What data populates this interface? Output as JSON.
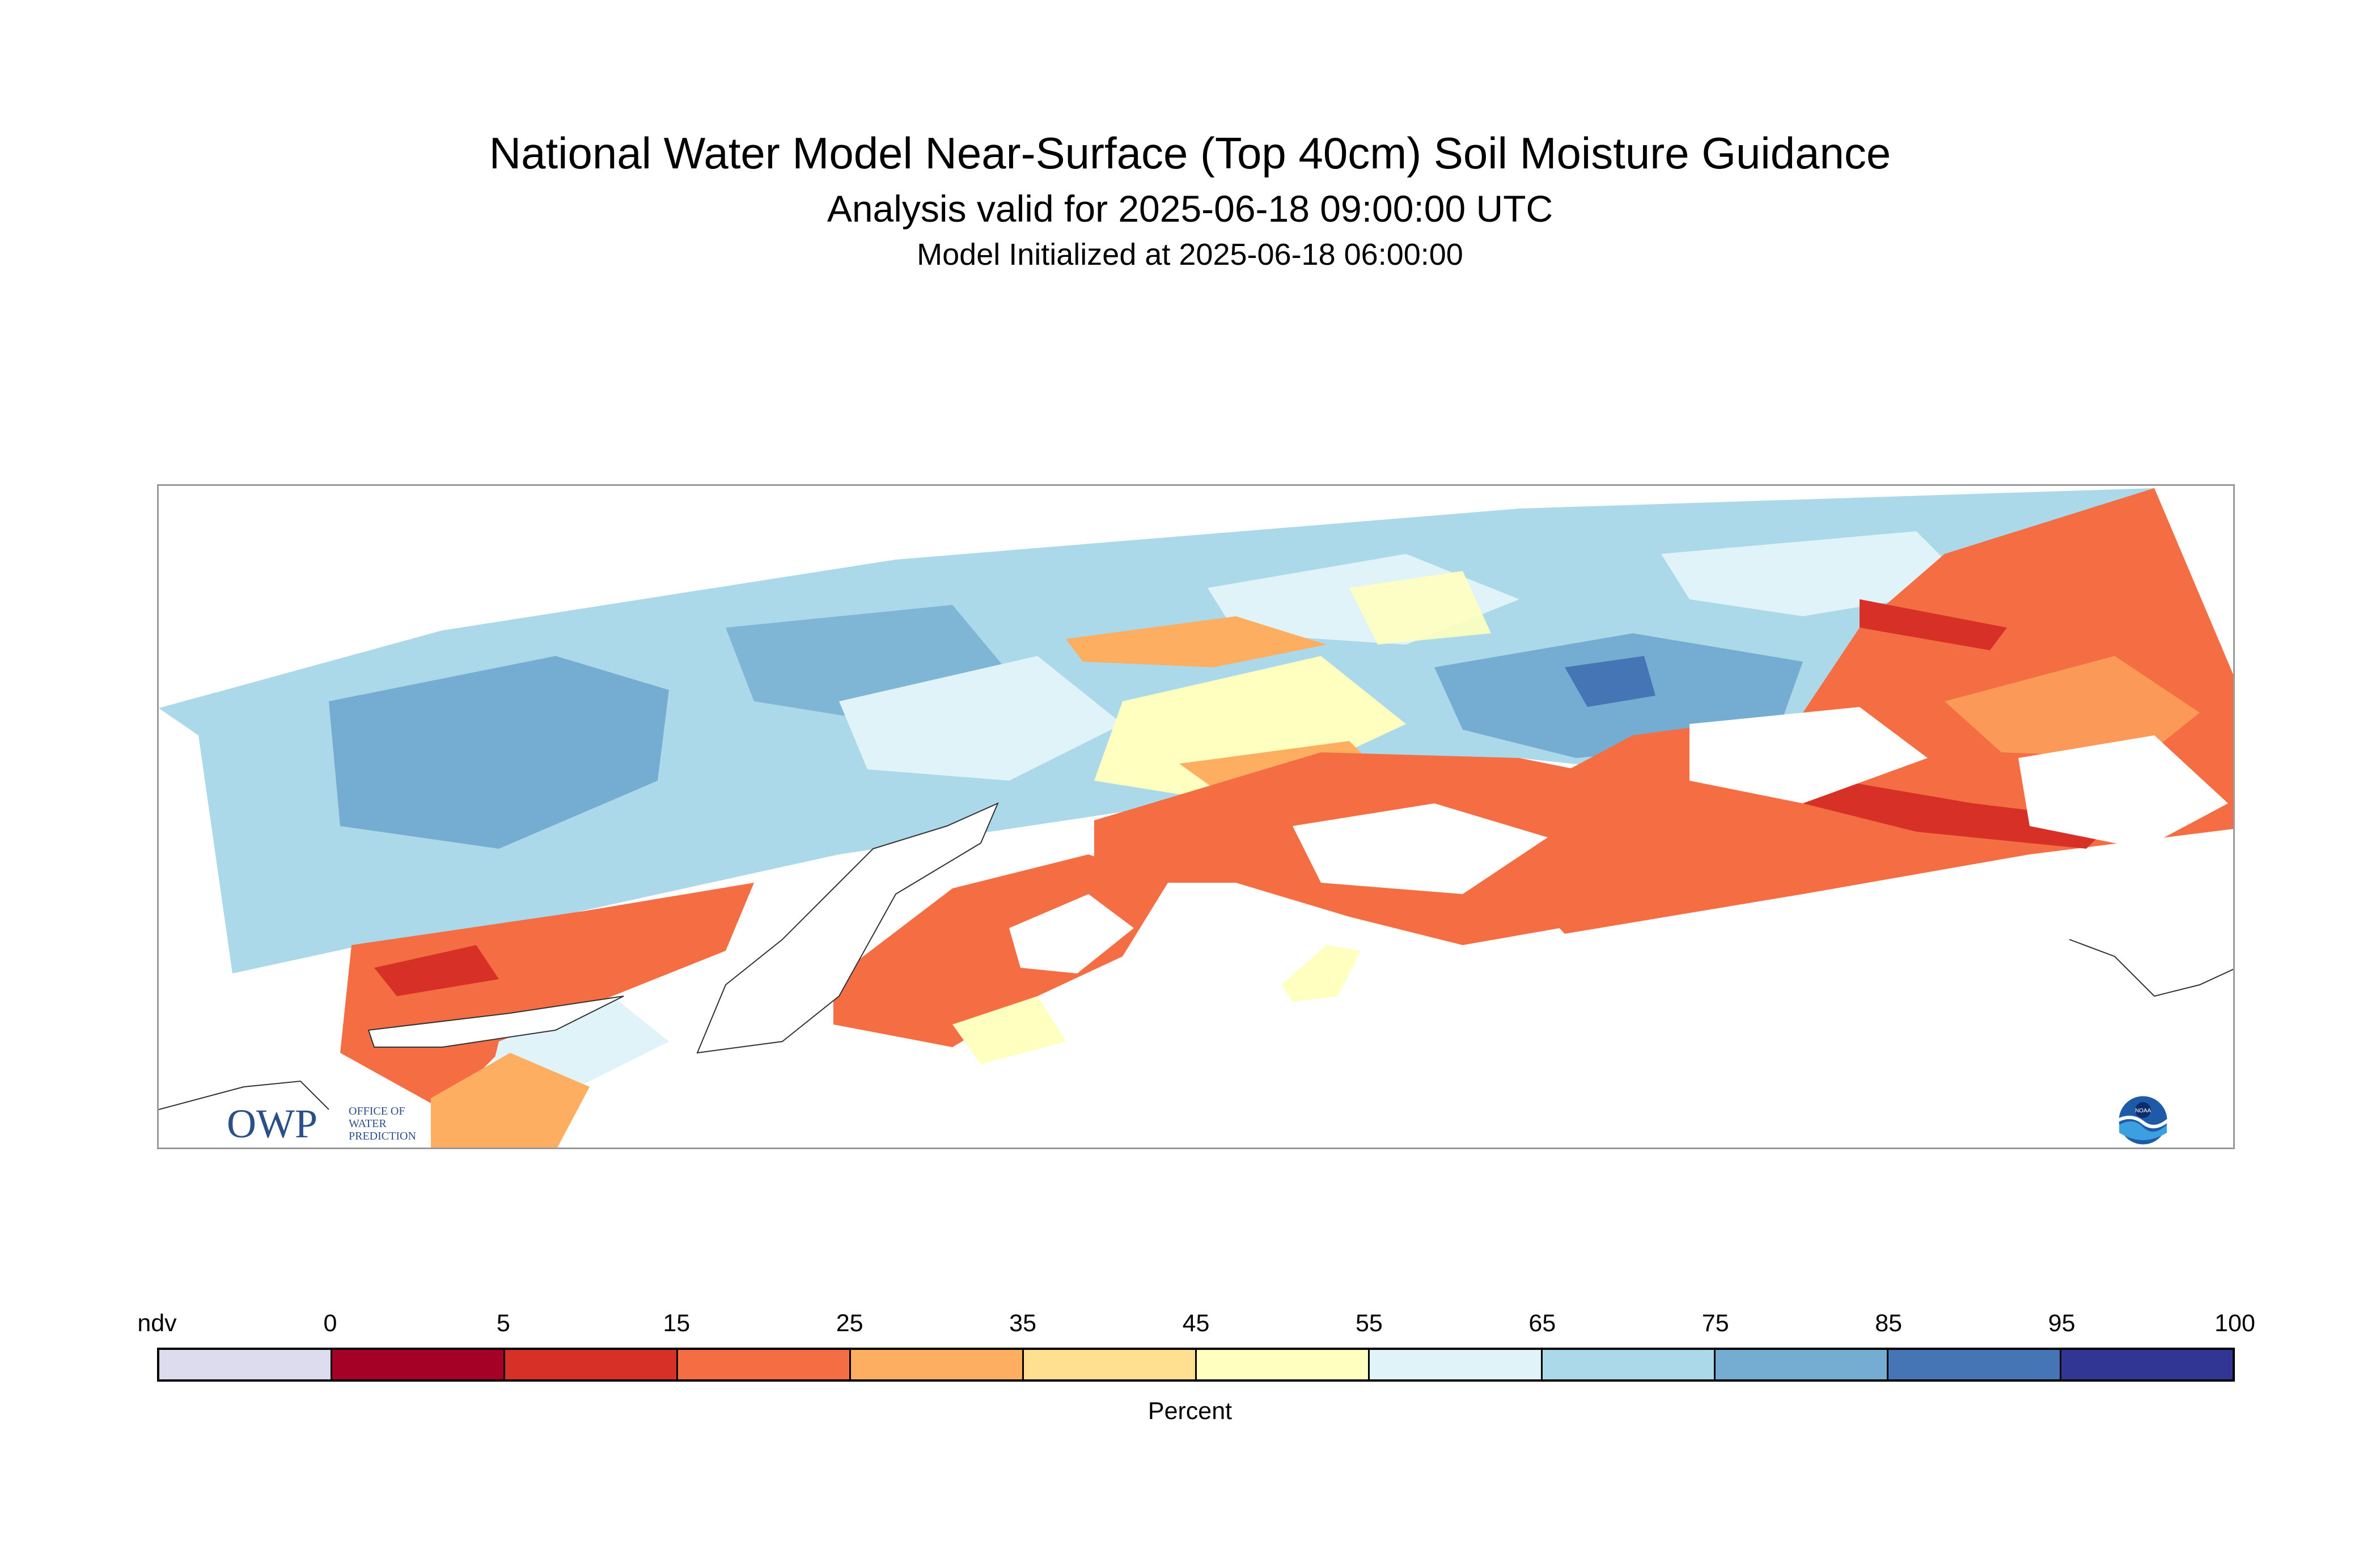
{
  "title": "National Water Model Near-Surface (Top 40cm) Soil Moisture Guidance",
  "subtitle": "Analysis valid for 2025-06-18 09:00:00 UTC",
  "init_line": "Model Initialized at 2025-06-18 06:00:00",
  "logos": {
    "owp_text": "OWP",
    "owp_sub": [
      "OFFICE OF",
      "WATER",
      "PREDICTION"
    ],
    "noaa_text": "NOAA"
  },
  "colorbar": {
    "label": "Percent",
    "tick_labels": [
      "ndv",
      "0",
      "5",
      "15",
      "25",
      "35",
      "45",
      "55",
      "65",
      "75",
      "85",
      "95",
      "100"
    ],
    "bins": [
      {
        "range": "ndv",
        "color": "#dcdcee"
      },
      {
        "range": "0-5",
        "color": "#a50026"
      },
      {
        "range": "5-15",
        "color": "#d73027"
      },
      {
        "range": "15-25",
        "color": "#f46d43"
      },
      {
        "range": "25-35",
        "color": "#fdae61"
      },
      {
        "range": "35-45",
        "color": "#fee090"
      },
      {
        "range": "45-55",
        "color": "#ffffbf"
      },
      {
        "range": "55-65",
        "color": "#e0f3f8"
      },
      {
        "range": "65-75",
        "color": "#abd9e9"
      },
      {
        "range": "75-85",
        "color": "#74add1"
      },
      {
        "range": "85-95",
        "color": "#4575b4"
      },
      {
        "range": "95-100",
        "color": "#313695"
      }
    ]
  }
}
